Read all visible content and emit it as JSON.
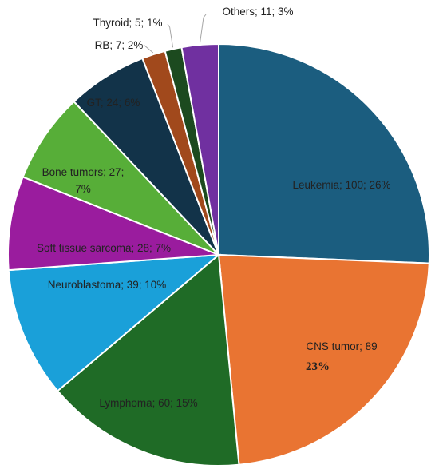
{
  "chart_data": {
    "type": "pie",
    "title": "",
    "slices": [
      {
        "label": "Leukemia",
        "value": 100,
        "percent": "26%",
        "color": "#1b5d7f",
        "label_text": "Leukemia; 100; 26%"
      },
      {
        "label": "CNS tumor",
        "value": 89,
        "percent": "23%",
        "color": "#e97432",
        "label_text": "CNS tumor; 89",
        "label_text_2": "23%"
      },
      {
        "label": "Lymphoma",
        "value": 60,
        "percent": "15%",
        "color": "#1f6b26",
        "label_text": "Lymphoma; 60; 15%"
      },
      {
        "label": "Neuroblastoma",
        "value": 39,
        "percent": "10%",
        "color": "#1aa0d9",
        "label_text": "Neuroblastoma; 39; 10%"
      },
      {
        "label": "Soft tissue sarcoma",
        "value": 28,
        "percent": "7%",
        "color": "#9a1c9e",
        "label_text": "Soft tissue sarcoma; 28; 7%"
      },
      {
        "label": "Bone tumors",
        "value": 27,
        "percent": "7%",
        "color": "#57ae38",
        "label_text": "Bone tumors; 27;",
        "label_text_2": "7%"
      },
      {
        "label": "GT",
        "value": 24,
        "percent": "6%",
        "color": "#123349",
        "label_text": "GT; 24; 6%"
      },
      {
        "label": "RB",
        "value": 7,
        "percent": "2%",
        "color": "#a1491c",
        "label_text": "RB; 7; 2%"
      },
      {
        "label": "Thyroid",
        "value": 5,
        "percent": "1%",
        "color": "#1c4a1f",
        "label_text": "Thyroid; 5; 1%"
      },
      {
        "label": "Others",
        "value": 11,
        "percent": "3%",
        "color": "#7030a0",
        "label_text": "Others; 11; 3%"
      }
    ]
  }
}
